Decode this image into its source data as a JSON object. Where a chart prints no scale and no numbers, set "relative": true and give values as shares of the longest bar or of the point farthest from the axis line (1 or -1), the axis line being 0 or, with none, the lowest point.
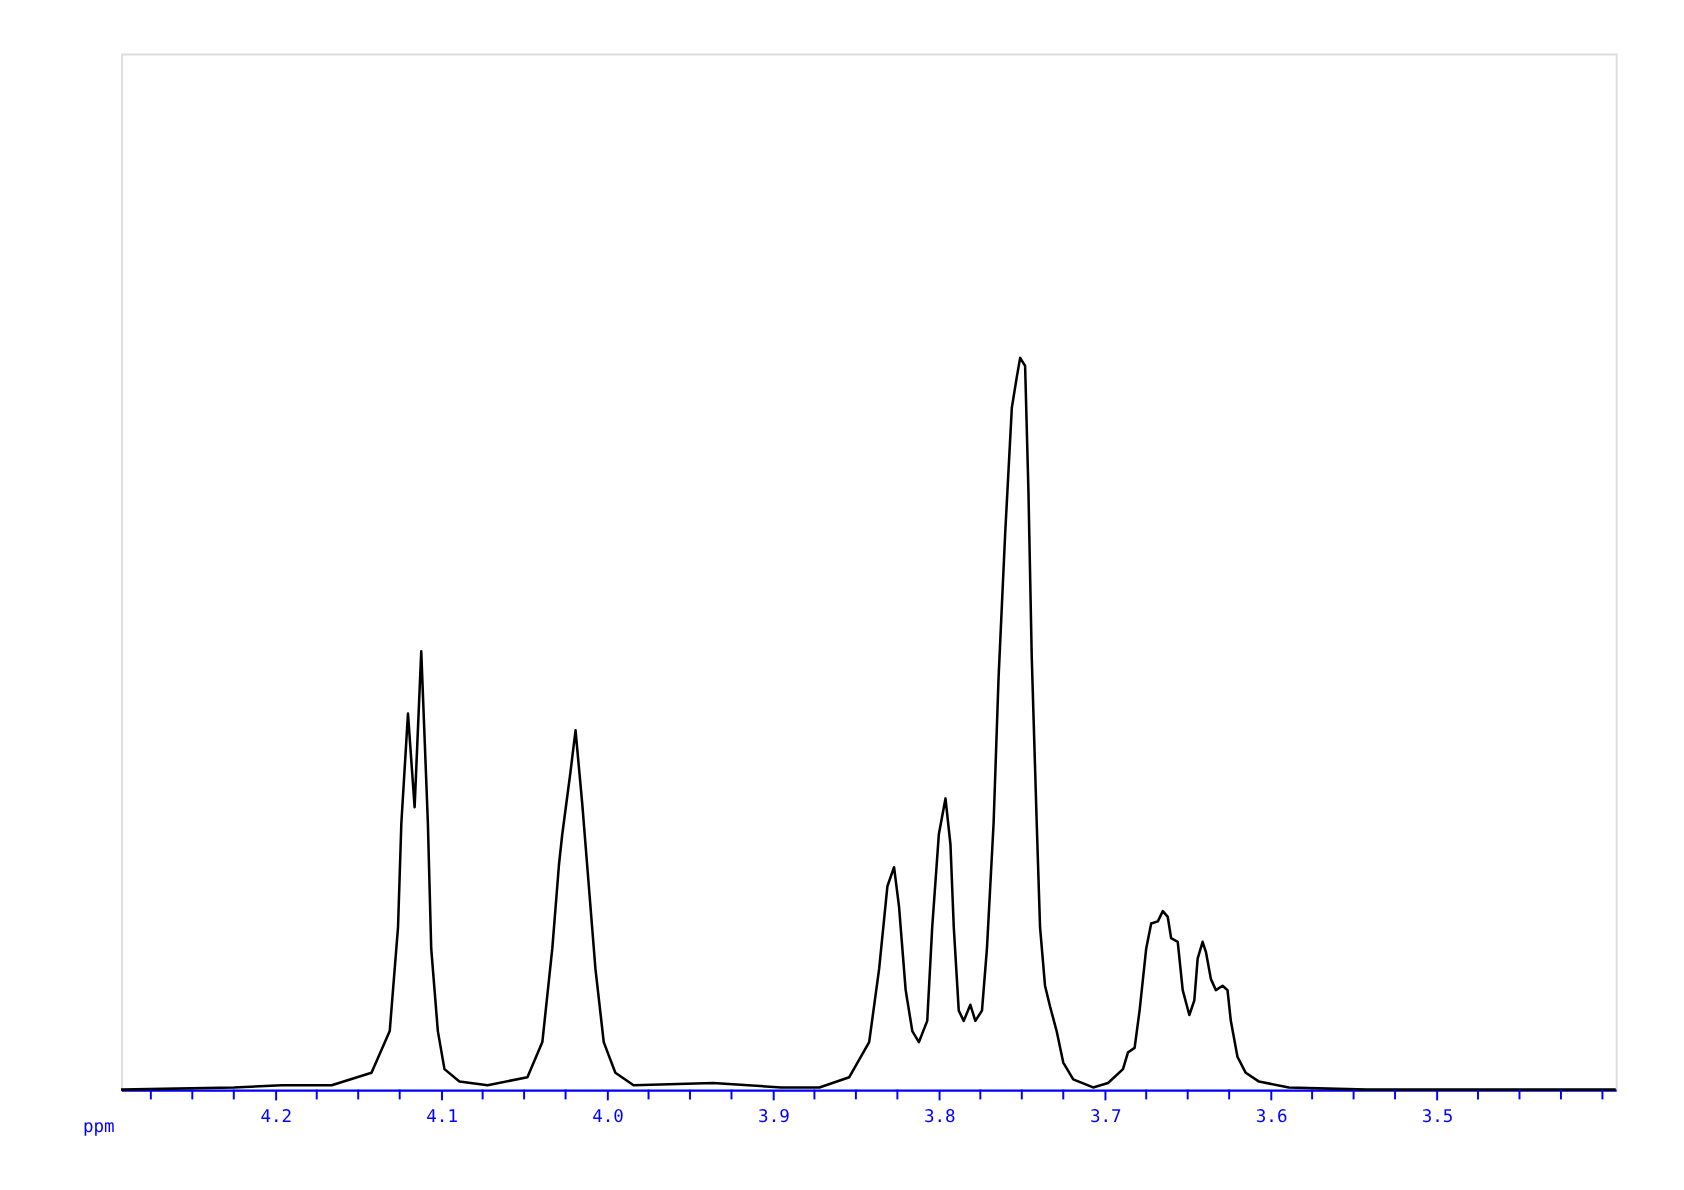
{
  "chart_data": {
    "type": "line",
    "relative": true,
    "xlabel": "ppm",
    "xlim": [
      4.293,
      3.392
    ],
    "xticks": [
      {
        "value": 4.275,
        "label": null
      },
      {
        "value": 4.25,
        "label": null
      },
      {
        "value": 4.225,
        "label": null
      },
      4.2,
      {
        "value": 4.175,
        "label": null
      },
      {
        "value": 4.15,
        "label": null
      },
      {
        "value": 4.125,
        "label": null
      },
      4.1,
      {
        "value": 4.075,
        "label": null
      },
      {
        "value": 4.05,
        "label": null
      },
      {
        "value": 4.025,
        "label": null
      },
      {
        "value": 4.0,
        "label": "4.0"
      },
      {
        "value": 3.975,
        "label": null
      },
      {
        "value": 3.95,
        "label": null
      },
      {
        "value": 3.925,
        "label": null
      },
      3.9,
      {
        "value": 3.875,
        "label": null
      },
      {
        "value": 3.85,
        "label": null
      },
      {
        "value": 3.825,
        "label": null
      },
      3.8,
      {
        "value": 3.775,
        "label": null
      },
      {
        "value": 3.75,
        "label": null
      },
      {
        "value": 3.725,
        "label": null
      },
      3.7,
      {
        "value": 3.675,
        "label": null
      },
      {
        "value": 3.65,
        "label": null
      },
      {
        "value": 3.625,
        "label": null
      },
      3.6,
      {
        "value": 3.575,
        "label": null
      },
      {
        "value": 3.55,
        "label": null
      },
      {
        "value": 3.525,
        "label": null
      },
      3.5,
      {
        "value": 3.475,
        "label": null
      },
      {
        "value": 3.45,
        "label": null
      },
      {
        "value": 3.425,
        "label": null
      },
      {
        "value": 3.4,
        "label": null
      }
    ],
    "x": [
      4.293,
      4.225,
      4.196,
      4.166,
      4.142,
      4.131,
      4.126,
      4.124,
      4.12,
      4.116,
      4.112,
      4.108,
      4.106,
      4.102,
      4.098,
      4.089,
      4.072,
      4.048,
      4.039,
      4.033,
      4.029,
      4.027,
      4.022,
      4.019,
      4.015,
      4.012,
      4.007,
      4.002,
      3.995,
      3.984,
      3.936,
      3.895,
      3.872,
      3.854,
      3.842,
      3.836,
      3.831,
      3.827,
      3.824,
      3.82,
      3.816,
      3.812,
      3.807,
      3.804,
      3.8,
      3.796,
      3.793,
      3.791,
      3.788,
      3.785,
      3.781,
      3.778,
      3.774,
      3.771,
      3.767,
      3.764,
      3.76,
      3.756,
      3.753,
      3.751,
      3.748,
      3.746,
      3.744,
      3.741,
      3.739,
      3.736,
      3.733,
      3.729,
      3.725,
      3.719,
      3.707,
      3.698,
      3.689,
      3.686,
      3.682,
      3.679,
      3.675,
      3.672,
      3.668,
      3.665,
      3.662,
      3.66,
      3.656,
      3.653,
      3.649,
      3.646,
      3.644,
      3.641,
      3.639,
      3.636,
      3.633,
      3.629,
      3.626,
      3.624,
      3.62,
      3.615,
      3.607,
      3.589,
      3.542,
      3.392
    ],
    "series": [
      {
        "color": "#000000",
        "values": [
          0,
          0.003,
          0.006,
          0.006,
          0.023,
          0.08,
          0.222,
          0.364,
          0.514,
          0.386,
          0.599,
          0.364,
          0.193,
          0.08,
          0.028,
          0.011,
          0.006,
          0.017,
          0.065,
          0.193,
          0.307,
          0.349,
          0.435,
          0.491,
          0.392,
          0.307,
          0.165,
          0.065,
          0.023,
          0.006,
          0.009,
          0.003,
          0.003,
          0.017,
          0.065,
          0.165,
          0.278,
          0.304,
          0.25,
          0.136,
          0.08,
          0.065,
          0.094,
          0.222,
          0.349,
          0.398,
          0.335,
          0.222,
          0.108,
          0.094,
          0.116,
          0.094,
          0.108,
          0.193,
          0.364,
          0.563,
          0.761,
          0.932,
          0.974,
          1,
          0.989,
          0.818,
          0.591,
          0.364,
          0.222,
          0.142,
          0.114,
          0.08,
          0.037,
          0.014,
          0.003,
          0.009,
          0.028,
          0.051,
          0.057,
          0.108,
          0.193,
          0.227,
          0.23,
          0.244,
          0.236,
          0.207,
          0.202,
          0.136,
          0.102,
          0.122,
          0.179,
          0.202,
          0.188,
          0.151,
          0.136,
          0.142,
          0.136,
          0.094,
          0.045,
          0.023,
          0.011,
          0.003,
          0,
          0
        ]
      }
    ]
  }
}
